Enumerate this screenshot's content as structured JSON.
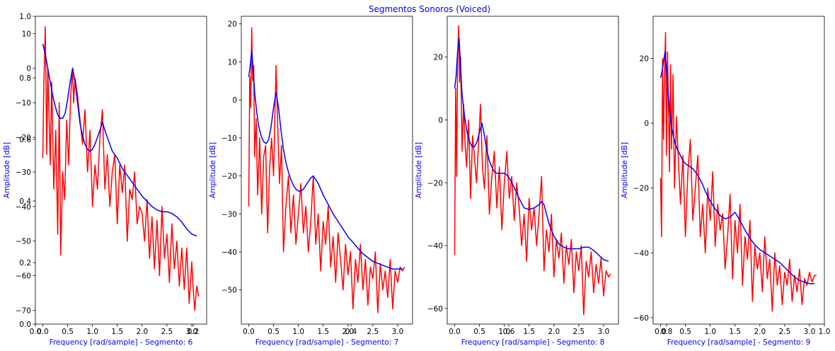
{
  "figure": {
    "title": "Segmentos Sonoros (Voiced)",
    "label_color": "#0000ff",
    "spectrum_color": "#ff0000",
    "envelope_color": "#0000ff"
  },
  "overlay_axis": {
    "ylim": [
      0.0,
      1.0
    ],
    "yticks": [
      "0.0",
      "0.2",
      "0.4",
      "0.6",
      "0.8",
      "1.0"
    ],
    "xlim": [
      0.0,
      1.0
    ],
    "xticks": [
      "0.0",
      "0.2",
      "0.4",
      "0.6",
      "0.8",
      "1.0"
    ]
  },
  "chart_data": [
    {
      "type": "line",
      "xlabel": "Frequency [rad/sample] - Segmento: 6",
      "ylabel": "Amplitude [dB]",
      "xlim": [
        -0.15,
        3.3
      ],
      "ylim": [
        -74,
        15
      ],
      "xticks": [
        "0.0",
        "0.5",
        "1.0",
        "1.5",
        "2.0",
        "2.5",
        "3.0"
      ],
      "yticks": [
        "10",
        "0",
        "−10",
        "−20",
        "−30",
        "−40",
        "−50",
        "−60",
        "−70"
      ],
      "series": [
        {
          "role": "spectrum",
          "x": [
            0.0,
            0.02,
            0.05,
            0.08,
            0.1,
            0.12,
            0.15,
            0.18,
            0.22,
            0.26,
            0.3,
            0.33,
            0.36,
            0.4,
            0.44,
            0.48,
            0.52,
            0.56,
            0.6,
            0.62,
            0.65,
            0.7,
            0.75,
            0.8,
            0.85,
            0.9,
            0.95,
            1.0,
            1.05,
            1.1,
            1.15,
            1.2,
            1.25,
            1.3,
            1.35,
            1.4,
            1.45,
            1.5,
            1.55,
            1.6,
            1.65,
            1.7,
            1.75,
            1.8,
            1.85,
            1.9,
            1.95,
            2.0,
            2.05,
            2.1,
            2.15,
            2.2,
            2.25,
            2.3,
            2.35,
            2.4,
            2.45,
            2.5,
            2.55,
            2.6,
            2.65,
            2.7,
            2.75,
            2.8,
            2.85,
            2.9,
            2.95,
            3.0,
            3.03,
            3.06,
            3.1,
            3.14
          ],
          "y": [
            -26,
            -5,
            12,
            -25,
            0,
            -10,
            -28,
            -4,
            -35,
            -18,
            -48,
            -10,
            -54,
            -30,
            -38,
            -15,
            -28,
            -8,
            0,
            -10,
            -3,
            -8,
            -15,
            -22,
            -12,
            -30,
            -18,
            -40,
            -28,
            -35,
            -20,
            -12,
            -35,
            -25,
            -40,
            -30,
            -25,
            -45,
            -28,
            -36,
            -28,
            -50,
            -35,
            -38,
            -30,
            -45,
            -40,
            -42,
            -50,
            -38,
            -55,
            -43,
            -58,
            -44,
            -60,
            -40,
            -55,
            -48,
            -62,
            -45,
            -58,
            -50,
            -63,
            -52,
            -64,
            -52,
            -68,
            -56,
            -64,
            -70,
            -63,
            -66
          ]
        },
        {
          "role": "envelope",
          "x": [
            0.0,
            0.05,
            0.1,
            0.15,
            0.2,
            0.25,
            0.3,
            0.35,
            0.4,
            0.45,
            0.5,
            0.55,
            0.6,
            0.65,
            0.7,
            0.75,
            0.8,
            0.85,
            0.9,
            0.95,
            1.0,
            1.05,
            1.1,
            1.15,
            1.2,
            1.25,
            1.3,
            1.35,
            1.4,
            1.45,
            1.5,
            1.6,
            1.7,
            1.8,
            1.9,
            2.0,
            2.1,
            2.2,
            2.3,
            2.4,
            2.5,
            2.6,
            2.7,
            2.8,
            2.9,
            3.0,
            3.1
          ],
          "y": [
            7,
            4,
            0,
            -4,
            -8,
            -11,
            -13.5,
            -14.5,
            -14.5,
            -13,
            -9,
            -4,
            0,
            -4,
            -10,
            -16,
            -19.5,
            -22,
            -23.5,
            -24,
            -23.5,
            -22,
            -20,
            -18,
            -15.5,
            -18,
            -20,
            -22,
            -24,
            -25,
            -26,
            -29,
            -31,
            -33,
            -35,
            -37,
            -38.5,
            -40,
            -41,
            -41.5,
            -41.5,
            -42,
            -43,
            -44.5,
            -46.5,
            -48,
            -48.5
          ]
        }
      ]
    },
    {
      "type": "line",
      "xlabel": "Frequency [rad/sample] - Segmento: 7",
      "ylabel": "Amplitude [dB]",
      "xlim": [
        -0.15,
        3.3
      ],
      "ylim": [
        -59,
        22
      ],
      "xticks": [
        "0.0",
        "0.5",
        "1.0",
        "1.5",
        "2.0",
        "2.5",
        "3.0"
      ],
      "yticks": [
        "20",
        "10",
        "0",
        "−10",
        "−20",
        "−30",
        "−40",
        "−50"
      ],
      "series": [
        {
          "role": "spectrum",
          "x": [
            0.0,
            0.02,
            0.04,
            0.06,
            0.08,
            0.1,
            0.12,
            0.15,
            0.18,
            0.22,
            0.26,
            0.3,
            0.34,
            0.38,
            0.42,
            0.46,
            0.5,
            0.55,
            0.58,
            0.62,
            0.66,
            0.7,
            0.75,
            0.8,
            0.85,
            0.9,
            0.95,
            1.0,
            1.05,
            1.1,
            1.15,
            1.2,
            1.25,
            1.3,
            1.35,
            1.4,
            1.45,
            1.5,
            1.55,
            1.6,
            1.65,
            1.7,
            1.75,
            1.8,
            1.85,
            1.9,
            1.95,
            2.0,
            2.05,
            2.1,
            2.15,
            2.2,
            2.25,
            2.3,
            2.35,
            2.4,
            2.45,
            2.5,
            2.55,
            2.6,
            2.65,
            2.7,
            2.75,
            2.8,
            2.85,
            2.9,
            2.95,
            3.0,
            3.05,
            3.1,
            3.14
          ],
          "y": [
            -28,
            6,
            -2,
            19,
            5,
            9,
            -15,
            -5,
            -25,
            -10,
            -30,
            -15,
            -12,
            -35,
            -18,
            -10,
            -20,
            9,
            -5,
            -22,
            -12,
            -40,
            -28,
            -20,
            -35,
            -25,
            -38,
            -30,
            -22,
            -35,
            -28,
            -40,
            -32,
            -20,
            -38,
            -30,
            -45,
            -32,
            -38,
            -28,
            -44,
            -36,
            -48,
            -35,
            -42,
            -50,
            -38,
            -46,
            -40,
            -55,
            -42,
            -48,
            -38,
            -50,
            -42,
            -54,
            -44,
            -47,
            -40,
            -56,
            -43,
            -50,
            -45,
            -52,
            -42,
            -55,
            -45,
            -48,
            -44,
            -45,
            -44
          ]
        },
        {
          "role": "envelope",
          "x": [
            0.0,
            0.03,
            0.06,
            0.09,
            0.12,
            0.16,
            0.2,
            0.25,
            0.3,
            0.35,
            0.4,
            0.45,
            0.5,
            0.55,
            0.6,
            0.65,
            0.7,
            0.75,
            0.8,
            0.85,
            0.9,
            0.95,
            1.0,
            1.05,
            1.1,
            1.15,
            1.2,
            1.25,
            1.3,
            1.35,
            1.4,
            1.5,
            1.6,
            1.7,
            1.8,
            1.9,
            2.0,
            2.1,
            2.2,
            2.3,
            2.4,
            2.5,
            2.6,
            2.7,
            2.8,
            2.9,
            3.0,
            3.1
          ],
          "y": [
            6,
            9,
            13,
            8,
            2,
            -3,
            -7,
            -9.5,
            -11,
            -11.5,
            -10.5,
            -7,
            -2,
            2,
            -2,
            -8,
            -13,
            -16.5,
            -19,
            -21,
            -22.5,
            -23.5,
            -24,
            -24,
            -23.5,
            -22.5,
            -21.5,
            -20.5,
            -20,
            -21,
            -22,
            -25,
            -27.5,
            -30,
            -32,
            -34,
            -36,
            -37.5,
            -39,
            -40.5,
            -41.5,
            -42.5,
            -43,
            -43.5,
            -44,
            -44.5,
            -44.5,
            -44.5
          ]
        }
      ]
    },
    {
      "type": "line",
      "xlabel": "Frequency [rad/sample] - Segmento: 8",
      "ylabel": "Amplitude [dB]",
      "xlim": [
        -0.15,
        3.3
      ],
      "ylim": [
        -65,
        33
      ],
      "xticks": [
        "0.0",
        "0.5",
        "1.0",
        "1.5",
        "2.0",
        "2.5",
        "3.0"
      ],
      "yticks": [
        "20",
        "0",
        "−20",
        "−40",
        "−60"
      ],
      "series": [
        {
          "role": "spectrum",
          "x": [
            0.0,
            0.02,
            0.04,
            0.06,
            0.08,
            0.1,
            0.12,
            0.15,
            0.18,
            0.21,
            0.24,
            0.28,
            0.32,
            0.36,
            0.4,
            0.44,
            0.48,
            0.52,
            0.56,
            0.6,
            0.65,
            0.7,
            0.75,
            0.8,
            0.85,
            0.9,
            0.95,
            1.0,
            1.05,
            1.1,
            1.15,
            1.2,
            1.25,
            1.3,
            1.35,
            1.4,
            1.45,
            1.5,
            1.55,
            1.6,
            1.65,
            1.7,
            1.75,
            1.8,
            1.85,
            1.9,
            1.95,
            2.0,
            2.05,
            2.1,
            2.15,
            2.2,
            2.25,
            2.3,
            2.35,
            2.4,
            2.45,
            2.5,
            2.55,
            2.6,
            2.65,
            2.7,
            2.75,
            2.8,
            2.85,
            2.9,
            2.95,
            3.0,
            3.05,
            3.1,
            3.14
          ],
          "y": [
            -43,
            10,
            -18,
            20,
            30,
            12,
            20,
            -10,
            5,
            -8,
            -15,
            0,
            -25,
            -5,
            -12,
            -20,
            -8,
            5,
            -15,
            -22,
            -5,
            -30,
            -18,
            -10,
            -28,
            -15,
            -35,
            -20,
            -10,
            -25,
            -18,
            -32,
            -20,
            -28,
            -40,
            -30,
            -45,
            -25,
            -35,
            -28,
            -40,
            -30,
            -18,
            -48,
            -35,
            -42,
            -30,
            -50,
            -38,
            -44,
            -36,
            -52,
            -40,
            -46,
            -38,
            -55,
            -42,
            -48,
            -40,
            -62,
            -45,
            -50,
            -42,
            -55,
            -46,
            -52,
            -44,
            -56,
            -48,
            -50,
            -49
          ]
        },
        {
          "role": "envelope",
          "x": [
            0.0,
            0.03,
            0.06,
            0.09,
            0.12,
            0.15,
            0.2,
            0.25,
            0.3,
            0.35,
            0.4,
            0.45,
            0.5,
            0.55,
            0.6,
            0.65,
            0.7,
            0.75,
            0.8,
            0.85,
            0.9,
            0.95,
            1.0,
            1.05,
            1.1,
            1.15,
            1.2,
            1.3,
            1.4,
            1.5,
            1.6,
            1.7,
            1.75,
            1.8,
            1.85,
            1.9,
            2.0,
            2.1,
            2.2,
            2.3,
            2.4,
            2.5,
            2.6,
            2.7,
            2.8,
            2.9,
            3.0,
            3.1
          ],
          "y": [
            10,
            14,
            22,
            26,
            17,
            8,
            1,
            -4,
            -7,
            -8.5,
            -8.5,
            -7,
            -4,
            -1,
            -5,
            -10,
            -13,
            -15,
            -16.5,
            -17,
            -17,
            -17,
            -17,
            -17.5,
            -18.5,
            -20,
            -21.5,
            -25,
            -28,
            -28.5,
            -28,
            -27,
            -26,
            -27,
            -30,
            -33,
            -37,
            -39.5,
            -40.5,
            -41,
            -41,
            -41,
            -40.5,
            -40.5,
            -41.5,
            -43,
            -44.5,
            -45
          ]
        }
      ]
    },
    {
      "type": "line",
      "xlabel": "Frequency [rad/sample] - Segmento: 9",
      "ylabel": "Amplitude [dB]",
      "xlim": [
        -0.15,
        3.3
      ],
      "ylim": [
        -62,
        33
      ],
      "xticks": [
        "0.0",
        "0.5",
        "1.0",
        "1.5",
        "2.0",
        "2.5",
        "3.0"
      ],
      "yticks": [
        "20",
        "0",
        "−20",
        "−40",
        "−60"
      ],
      "series": [
        {
          "role": "spectrum",
          "x": [
            0.0,
            0.02,
            0.04,
            0.06,
            0.08,
            0.1,
            0.12,
            0.14,
            0.16,
            0.18,
            0.2,
            0.22,
            0.25,
            0.28,
            0.32,
            0.36,
            0.4,
            0.45,
            0.5,
            0.55,
            0.6,
            0.65,
            0.7,
            0.75,
            0.8,
            0.85,
            0.9,
            0.95,
            1.0,
            1.05,
            1.1,
            1.15,
            1.2,
            1.25,
            1.3,
            1.35,
            1.4,
            1.45,
            1.5,
            1.55,
            1.6,
            1.65,
            1.7,
            1.75,
            1.8,
            1.85,
            1.9,
            1.95,
            2.0,
            2.05,
            2.1,
            2.15,
            2.2,
            2.25,
            2.3,
            2.35,
            2.4,
            2.45,
            2.5,
            2.55,
            2.6,
            2.65,
            2.7,
            2.75,
            2.8,
            2.85,
            2.9,
            2.95,
            3.0,
            3.05,
            3.1,
            3.14
          ],
          "y": [
            -17,
            -35,
            20,
            -5,
            15,
            28,
            -10,
            22,
            5,
            -15,
            18,
            -8,
            15,
            -20,
            2,
            -12,
            -25,
            -10,
            -35,
            -15,
            -5,
            -30,
            -20,
            -10,
            -35,
            -25,
            -40,
            -20,
            -30,
            -15,
            -38,
            -25,
            -33,
            -28,
            -45,
            -35,
            -22,
            -48,
            -30,
            -40,
            -25,
            -50,
            -35,
            -42,
            -30,
            -55,
            -38,
            -45,
            -40,
            -52,
            -35,
            -48,
            -42,
            -58,
            -40,
            -50,
            -44,
            -56,
            -46,
            -50,
            -42,
            -55,
            -47,
            -52,
            -45,
            -56,
            -48,
            -50,
            -46,
            -49,
            -47,
            -47
          ]
        },
        {
          "role": "envelope",
          "x": [
            0.0,
            0.03,
            0.06,
            0.09,
            0.12,
            0.15,
            0.18,
            0.22,
            0.26,
            0.3,
            0.35,
            0.4,
            0.45,
            0.5,
            0.55,
            0.6,
            0.65,
            0.7,
            0.75,
            0.8,
            0.85,
            0.9,
            1.0,
            1.1,
            1.2,
            1.3,
            1.4,
            1.5,
            1.6,
            1.7,
            1.8,
            1.9,
            2.0,
            2.1,
            2.2,
            2.3,
            2.4,
            2.5,
            2.6,
            2.7,
            2.8,
            2.9,
            3.0,
            3.1
          ],
          "y": [
            14,
            16,
            19,
            22,
            17,
            10,
            4,
            -1,
            -4,
            -6.5,
            -8.5,
            -10,
            -11.5,
            -12.5,
            -13,
            -13.5,
            -14,
            -15,
            -16,
            -17.5,
            -19,
            -21,
            -24,
            -26.5,
            -28.5,
            -29.5,
            -29,
            -27.5,
            -30,
            -33,
            -35.5,
            -37.5,
            -39,
            -40,
            -41,
            -42,
            -43,
            -44.5,
            -46,
            -47.5,
            -48.5,
            -49,
            -49.5,
            -49.5
          ]
        }
      ]
    }
  ]
}
